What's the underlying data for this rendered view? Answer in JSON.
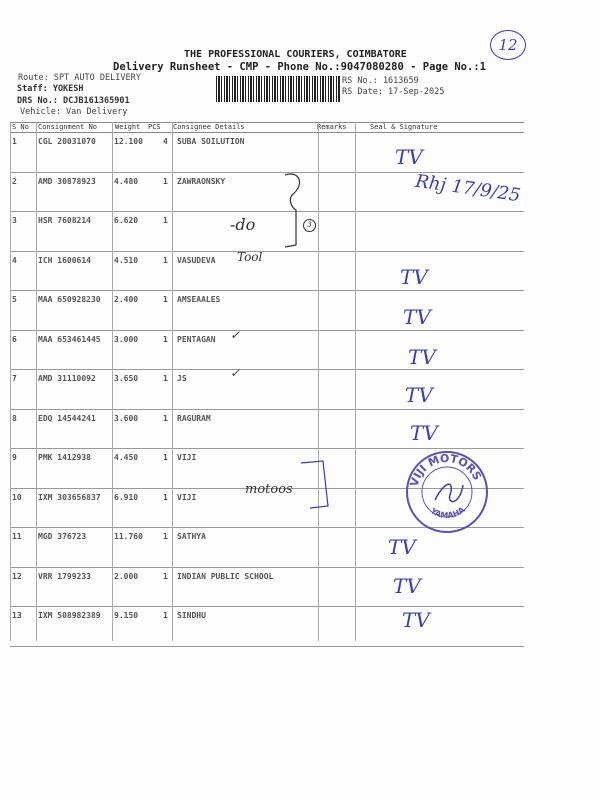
{
  "header": {
    "company": "THE PROFESSIONAL COURIERS, COIMBATORE",
    "subtitle": "Delivery Runsheet - CMP - Phone No.:9047080280 - Page No.:1",
    "route": "Route: SPT AUTO DELIVERY",
    "staff": "Staff: YOKESH",
    "drs_no": "DRS No.: DCJB161365901",
    "vehicle": "Vehicle: Van Delivery",
    "rs_no": "RS No.: 1613659",
    "rs_date": "RS Date: 17-Sep-2025",
    "page_mark": "12"
  },
  "table": {
    "columns": [
      "S No",
      "Consignment No",
      "Weight",
      "PCS",
      "Consignee Details",
      "Remarks",
      "Seal & Signature"
    ],
    "rows": [
      {
        "sno": "1",
        "consignment": "CGL 20031070",
        "weight": "12.100",
        "pcs": "4",
        "consignee": "SUBA SOILUTION"
      },
      {
        "sno": "2",
        "consignment": "AMD 30878923",
        "weight": "4.480",
        "pcs": "1",
        "consignee": "ZAWRAONSKY"
      },
      {
        "sno": "3",
        "consignment": "HSR 7608214",
        "weight": "6.620",
        "pcs": "1",
        "consignee": ""
      },
      {
        "sno": "4",
        "consignment": "ICH 1600614",
        "weight": "4.510",
        "pcs": "1",
        "consignee": "VASUDEVA"
      },
      {
        "sno": "5",
        "consignment": "MAA 650928230",
        "weight": "2.400",
        "pcs": "1",
        "consignee": "AMSEAALES"
      },
      {
        "sno": "6",
        "consignment": "MAA 653461445",
        "weight": "3.000",
        "pcs": "1",
        "consignee": "PENTAGAN"
      },
      {
        "sno": "7",
        "consignment": "AMD 31110092",
        "weight": "3.650",
        "pcs": "1",
        "consignee": "JS"
      },
      {
        "sno": "8",
        "consignment": "EDQ 14544241",
        "weight": "3.600",
        "pcs": "1",
        "consignee": "RAGURAM"
      },
      {
        "sno": "9",
        "consignment": "PMK 1412938",
        "weight": "4.450",
        "pcs": "1",
        "consignee": "VIJI"
      },
      {
        "sno": "10",
        "consignment": "IXM 303656837",
        "weight": "6.910",
        "pcs": "1",
        "consignee": "VIJI"
      },
      {
        "sno": "11",
        "consignment": "MGD 376723",
        "weight": "11.760",
        "pcs": "1",
        "consignee": "SATHYA"
      },
      {
        "sno": "12",
        "consignment": "VRR 1799233",
        "weight": "2.000",
        "pcs": "1",
        "consignee": "INDIAN PUBLIC SCHOOL"
      },
      {
        "sno": "13",
        "consignment": "IXM 508982389",
        "weight": "9.150",
        "pcs": "1",
        "consignee": "SINDHU"
      }
    ]
  },
  "handwriting": {
    "sig_initials": "TV",
    "sig_row2": "Rhj 17/9/25",
    "ditto": "-do",
    "circled": "3",
    "vasudeva_note": "Tool",
    "motors_note": "motoos",
    "check": "✓"
  },
  "stamp": {
    "top": "VIJI MOTORS",
    "bottom": "YAMAHA",
    "color": "#5b4fb8"
  },
  "ink_color": "#3a3fb0"
}
